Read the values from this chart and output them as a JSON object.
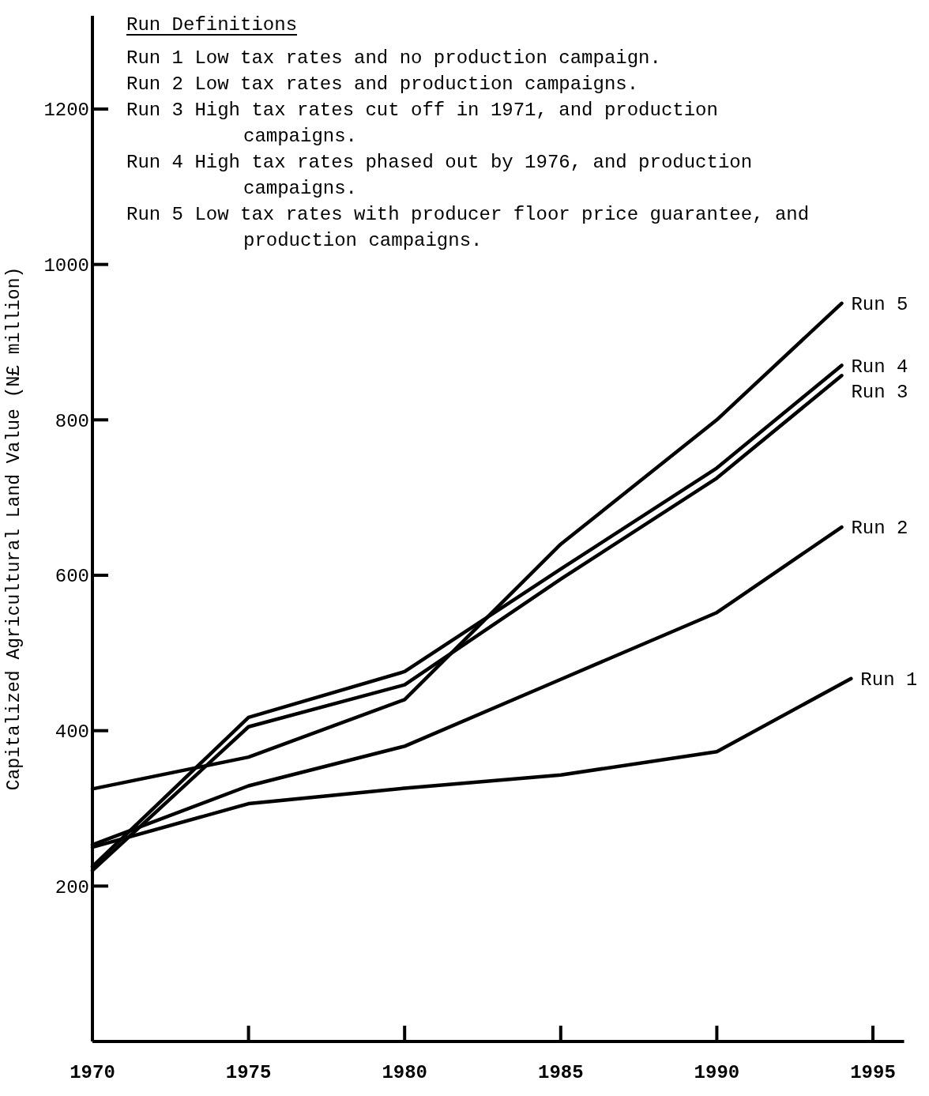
{
  "chart_data": {
    "type": "line",
    "ylabel": "Capitalized Agricultural Land Value (N£ million)",
    "xlim": [
      1970,
      1996
    ],
    "ylim": [
      0,
      1320
    ],
    "xticks": [
      1970,
      1975,
      1980,
      1985,
      1990,
      1995
    ],
    "yticks": [
      200,
      400,
      600,
      800,
      1000,
      1200
    ],
    "grid": false,
    "marker": "none",
    "line_style": "solid",
    "annotations": [
      "Run Definitions",
      "Run 1  Low tax rates and no production campaign.",
      "Run 2  Low tax rates and production campaigns.",
      "Run 3  High tax rates cut off in 1971, and production campaigns.",
      "Run 4  High tax rates phased out by 1976, and production campaigns.",
      "Run 5  Low tax rates with producer floor price guarantee, and production campaigns."
    ],
    "series": [
      {
        "name": "Run 1",
        "color": "#000000",
        "x": [
          1970,
          1975,
          1980,
          1985,
          1990,
          1994.3
        ],
        "values": [
          250,
          306,
          326,
          343,
          373,
          467
        ]
      },
      {
        "name": "Run 2",
        "color": "#000000",
        "x": [
          1970,
          1975,
          1980,
          1985,
          1990,
          1994
        ],
        "values": [
          253,
          329,
          380,
          466,
          552,
          662
        ]
      },
      {
        "name": "Run 3",
        "color": "#000000",
        "x": [
          1970,
          1975,
          1980,
          1985,
          1990,
          1994
        ],
        "values": [
          220,
          405,
          459,
          595,
          725,
          857
        ]
      },
      {
        "name": "Run 4",
        "color": "#000000",
        "x": [
          1970,
          1975,
          1980,
          1985,
          1990,
          1994
        ],
        "values": [
          225,
          417,
          476,
          608,
          738,
          870
        ]
      },
      {
        "name": "Run 5",
        "color": "#000000",
        "x": [
          1970,
          1975,
          1980,
          1985,
          1990,
          1994
        ],
        "values": [
          325,
          366,
          440,
          640,
          800,
          950
        ]
      }
    ]
  }
}
